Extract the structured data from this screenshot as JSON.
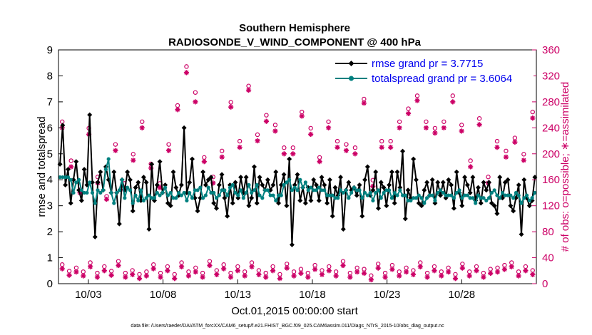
{
  "chart_data": {
    "type": "line",
    "title": "Southern Hemisphere",
    "subtitle": "RADIOSONDE_V_WIND_COMPONENT @ 400 hPa",
    "xlabel": "Oct.01,2015 00:00:00 start",
    "ylabel_left": "rmse and totalspread",
    "ylabel_right": "# of obs: o=possible; ∗=assimilated",
    "ylim_left": [
      0,
      9
    ],
    "ylim_right": [
      0,
      360
    ],
    "xlim_days": [
      1,
      33
    ],
    "x_tick_labels": [
      "10/03",
      "10/08",
      "10/13",
      "10/18",
      "10/23",
      "10/28"
    ],
    "x_tick_days": [
      3,
      8,
      13,
      18,
      23,
      28
    ],
    "y_left_ticks": [
      "0",
      "1",
      "2",
      "3",
      "4",
      "5",
      "6",
      "7",
      "8",
      "9"
    ],
    "y_right_ticks": [
      "0",
      "40",
      "80",
      "120",
      "160",
      "200",
      "240",
      "280",
      "320",
      "360"
    ],
    "footer": "data file: /Users/raeder/DAI/ATM_forcXX/CAM6_setup/f.e21.FHIST_BGC.f09_025.CAM6assim.011/Diags_NTrS_2015-10/obs_diag_output.nc",
    "series": [
      {
        "name": "rmse grand pr = 3.7715",
        "color": "#000000",
        "axis": "left",
        "values": [
          4.6,
          6.1,
          3.8,
          4.4,
          3.1,
          4.0,
          4.7,
          3.6,
          3.2,
          4.4,
          3.8,
          6.5,
          3.9,
          1.8,
          3.9,
          4.3,
          3.6,
          4.5,
          4.0,
          3.5,
          4.3,
          3.5,
          2.3,
          4.0,
          3.6,
          4.3,
          4.0,
          2.8,
          3.7,
          3.9,
          3.2,
          4.1,
          3.9,
          2.1,
          4.6,
          3.2,
          3.8,
          4.7,
          3.5,
          3.8,
          3.1,
          3.0,
          4.3,
          3.7,
          3.4,
          3.8,
          6.0,
          3.5,
          3.9,
          4.8,
          3.3,
          2.8,
          3.3,
          4.3,
          3.8,
          4.0,
          4.1,
          3.1,
          2.9,
          3.8,
          4.2,
          3.3,
          2.6,
          3.8,
          3.1,
          3.9,
          3.3,
          4.1,
          3.5,
          4.1,
          3.0,
          3.3,
          4.5,
          3.1,
          4.1,
          3.8,
          3.6,
          4.0,
          3.6,
          3.8,
          4.3,
          3.1,
          3.8,
          4.2,
          3.0,
          4.8,
          1.5,
          3.8,
          4.2,
          3.2,
          3.7,
          3.1,
          3.7,
          3.2,
          4.0,
          3.8,
          3.2,
          4.1,
          3.8,
          3.1,
          4.0,
          2.6,
          3.7,
          3.4,
          4.1,
          2.1,
          3.6,
          3.9,
          3.6,
          3.7,
          3.4,
          3.8,
          2.6,
          4.0,
          4.5,
          3.4,
          3.6,
          4.3,
          2.9,
          3.9,
          3.7,
          3.0,
          3.8,
          4.3,
          3.1,
          4.3,
          3.7,
          5.1,
          2.5,
          3.6,
          3.3,
          4.8,
          4.0,
          3.1,
          3.0,
          3.6,
          3.9,
          3.4,
          4.0,
          3.1,
          3.9,
          3.4,
          3.9,
          3.3,
          4.0,
          3.8,
          2.9,
          4.3,
          3.5,
          3.0,
          4.1,
          3.8,
          3.5,
          4.1,
          3.2,
          3.7,
          3.1,
          3.9,
          3.6,
          3.9,
          3.1,
          3.0,
          2.7,
          4.1,
          3.3,
          3.9,
          4.0,
          3.0,
          2.8,
          3.3,
          3.8,
          1.9,
          4.0,
          3.3,
          3.0,
          3.2,
          4.1
        ],
        "marker": "diamond"
      },
      {
        "name": "totalspread grand pr = 3.6064",
        "color": "#00807f",
        "axis": "left",
        "values": [
          4.1,
          4.1,
          4.1,
          4.1,
          4.0,
          3.5,
          3.9,
          4.0,
          3.6,
          3.5,
          3.5,
          3.9,
          3.5,
          3.1,
          3.6,
          3.5,
          3.6,
          4.4,
          4.8,
          3.5,
          3.1,
          3.5,
          3.6,
          4.0,
          3.3,
          3.7,
          3.6,
          3.1,
          3.4,
          3.2,
          3.6,
          3.2,
          3.3,
          3.4,
          3.3,
          3.3,
          3.5,
          3.4,
          3.5,
          3.7,
          3.4,
          3.5,
          3.3,
          3.3,
          3.5,
          3.4,
          3.5,
          3.2,
          3.5,
          3.3,
          3.6,
          3.6,
          3.7,
          3.3,
          3.4,
          3.7,
          3.5,
          3.5,
          3.3,
          3.4,
          3.6,
          3.6,
          3.4,
          3.7,
          3.8,
          3.5,
          3.4,
          3.6,
          3.3,
          3.5,
          3.8,
          3.5,
          3.6,
          3.8,
          3.4,
          3.3,
          3.6,
          3.6,
          3.4,
          3.4,
          3.2,
          3.4,
          3.4,
          3.8,
          3.9,
          4.0,
          3.6,
          3.7,
          3.6,
          4.0,
          3.7,
          3.9,
          3.6,
          3.7,
          3.6,
          3.6,
          3.7,
          3.6,
          3.6,
          3.4,
          3.4,
          3.4,
          3.3,
          3.3,
          3.6,
          3.5,
          3.6,
          3.3,
          3.5,
          3.7,
          3.6,
          3.6,
          3.3,
          3.5,
          3.4,
          3.5,
          3.2,
          3.5,
          3.6,
          3.3,
          3.5,
          3.6,
          3.6,
          3.3,
          3.5,
          3.4,
          3.6,
          3.4,
          3.4,
          3.2,
          3.2,
          3.3,
          3.3,
          3.4,
          3.3,
          3.1,
          3.3,
          3.4,
          3.4,
          3.2,
          3.5,
          3.6,
          3.5,
          3.4,
          3.4,
          3.4,
          3.3,
          3.5,
          3.6,
          3.3,
          3.4,
          3.4,
          3.3,
          3.3,
          3.1,
          3.4,
          3.3,
          3.3,
          3.2,
          3.3,
          3.5,
          3.6,
          3.4,
          3.3,
          3.5,
          3.4,
          3.4,
          3.4,
          3.3,
          3.5,
          3.4,
          3.1,
          3.3,
          3.4,
          3.2,
          3.3,
          3.5
        ],
        "marker": "circle"
      },
      {
        "name": "obs possible (upper)",
        "color": "#cc0066",
        "axis": "right",
        "marker": "ring",
        "values": [
          245,
          185,
          140,
          235,
          160,
          130,
          210,
          150,
          195,
          245,
          180,
          150,
          210,
          270,
          330,
          290,
          190,
          160,
          200,
          275,
          215,
          300,
          225,
          255,
          240,
          205,
          205,
          260,
          235,
          190,
          245,
          215,
          210,
          205,
          280,
          155,
          215,
          215,
          245,
          265,
          285,
          245,
          235,
          245,
          285,
          240,
          185,
          250,
          160,
          215,
          200,
          220,
          195,
          260
        ]
      },
      {
        "name": "obs assimilated (upper)",
        "color": "#cc0066",
        "axis": "right",
        "marker": "star",
        "values": [
          240,
          180,
          140,
          230,
          155,
          130,
          205,
          145,
          190,
          240,
          178,
          148,
          205,
          268,
          325,
          280,
          188,
          155,
          195,
          272,
          210,
          298,
          220,
          250,
          235,
          200,
          200,
          258,
          230,
          188,
          240,
          210,
          205,
          200,
          278,
          150,
          210,
          210,
          240,
          262,
          282,
          240,
          232,
          240,
          280,
          235,
          180,
          245,
          155,
          210,
          195,
          218,
          190,
          255
        ]
      },
      {
        "name": "obs possible (lower)",
        "color": "#cc0066",
        "axis": "right",
        "marker": "ring",
        "values": [
          25,
          15,
          20,
          14,
          28,
          12,
          22,
          15,
          30,
          12,
          16,
          10,
          14,
          25,
          12,
          22,
          10,
          28,
          14,
          20,
          12,
          30,
          16,
          25,
          12,
          22,
          14,
          28,
          16,
          12,
          22,
          10,
          26,
          14,
          18,
          12,
          24,
          16,
          22,
          14,
          30,
          12,
          20,
          18,
          8,
          26,
          12,
          24,
          14,
          20,
          16,
          28,
          12,
          22,
          14,
          20,
          10,
          26,
          14,
          22,
          12,
          18,
          20,
          24,
          28,
          14,
          22,
          16
        ]
      },
      {
        "name": "obs assimilated (lower)",
        "color": "#cc0066",
        "axis": "right",
        "marker": "star",
        "values": [
          23,
          13,
          18,
          12,
          26,
          10,
          20,
          13,
          28,
          10,
          14,
          8,
          12,
          23,
          10,
          20,
          8,
          26,
          12,
          18,
          10,
          28,
          14,
          23,
          10,
          20,
          12,
          26,
          14,
          10,
          20,
          8,
          24,
          12,
          16,
          10,
          22,
          14,
          20,
          12,
          28,
          10,
          18,
          16,
          6,
          24,
          10,
          22,
          12,
          18,
          14,
          26,
          10,
          20,
          12,
          18,
          8,
          24,
          12,
          20,
          10,
          16,
          18,
          22,
          26,
          12,
          20,
          14
        ]
      }
    ],
    "legend_position": "top-right",
    "grid": false
  }
}
